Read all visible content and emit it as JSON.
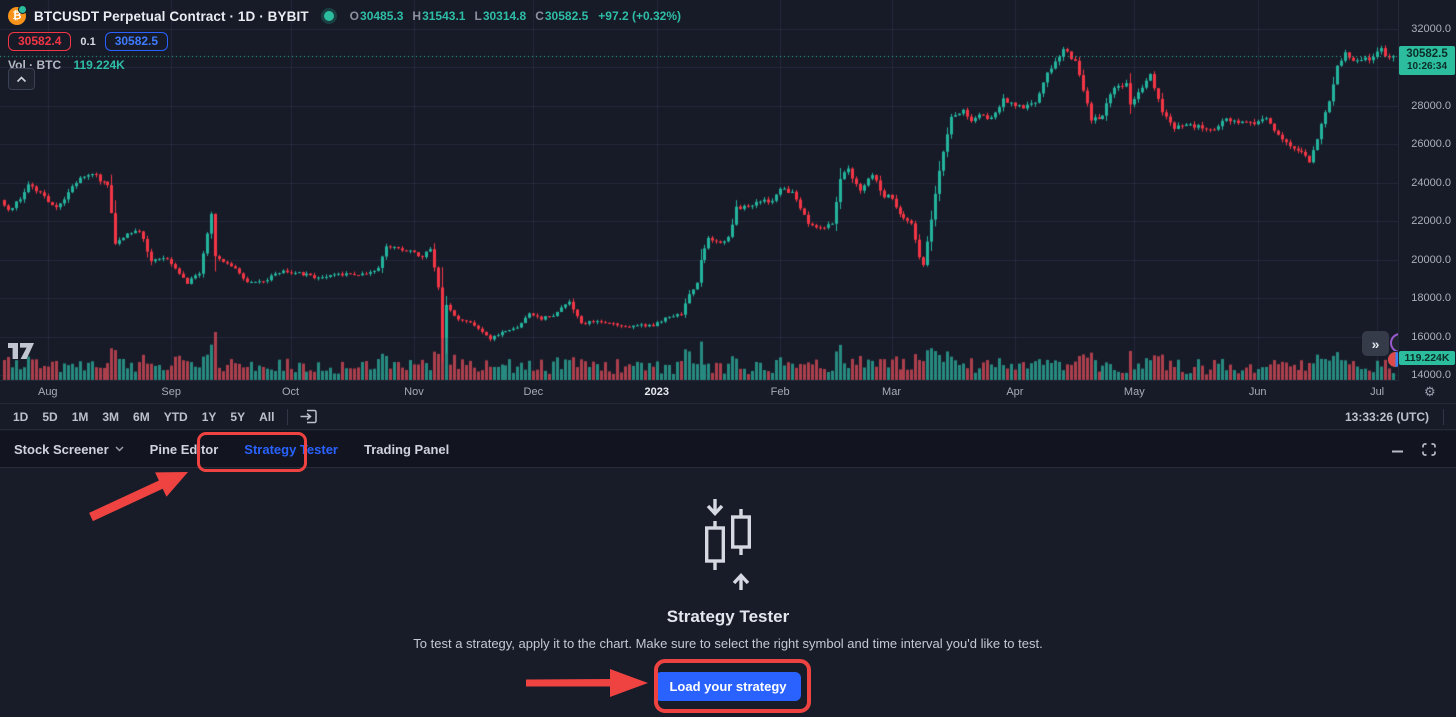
{
  "header": {
    "symbol_title": "BTCUSDT Perpetual Contract · 1D · BYBIT",
    "ohlc": {
      "o_key": "O",
      "o": "30485.3",
      "h_key": "H",
      "h": "31543.1",
      "l_key": "L",
      "l": "30314.8",
      "c_key": "C",
      "c": "30582.5",
      "change": "+97.2 (+0.32%)"
    },
    "bid": "30582.4",
    "spread": "0.1",
    "ask": "30582.5",
    "vol_key": "Vol · BTC",
    "vol_value": "119.224K"
  },
  "price_axis": {
    "current_price": "30582.5",
    "countdown": "10:26:34",
    "volume_label": "119.224K"
  },
  "toolbar": {
    "ranges": [
      "1D",
      "5D",
      "1M",
      "3M",
      "6M",
      "YTD",
      "1Y",
      "5Y",
      "All"
    ],
    "clock": "13:33:26 (UTC)"
  },
  "tabs": {
    "items": [
      "Stock Screener",
      "Pine Editor",
      "Strategy Tester",
      "Trading Panel"
    ],
    "active": "Strategy Tester"
  },
  "strategy_tester": {
    "title": "Strategy Tester",
    "description": "To test a strategy, apply it to the chart. Make sure to select the right symbol and time interval you'd like to test.",
    "button_label": "Load your strategy"
  },
  "icons": {
    "symbol_logo": "bitcoin-circle",
    "market_status": "connected-dot",
    "collapse_pane": "chevron-up",
    "goto_date": "calendar-arrow",
    "price_scale_settings": "gear",
    "scroll_to_recent": "double-chevron-right",
    "screener_caret": "chevron-down",
    "minimize": "minus",
    "restore": "corner-brackets",
    "watermark": "tradingview-logo"
  },
  "colors": {
    "accent_blue": "#2962ff",
    "up_green": "#25b39d",
    "down_red": "#f23645",
    "vol_up": "rgba(42,157,143,0.85)",
    "vol_down": "rgba(198,69,82,0.85)",
    "label_green": "#2bbd9e",
    "annotation_red": "#ee4340"
  },
  "chart_data": {
    "type": "candlestick",
    "title": "BTCUSDT Perpetual Contract, 1D, BYBIT",
    "legend": "Vol · BTC 119.224K",
    "y_axis": {
      "min": 14000,
      "max": 32000,
      "tick_step": 2000,
      "ticks": [
        32000,
        30000,
        28000,
        26000,
        24000,
        22000,
        20000,
        18000,
        16000,
        14000
      ]
    },
    "x_axis": {
      "months": [
        {
          "label": "Aug",
          "day": 11
        },
        {
          "label": "Sep",
          "day": 42
        },
        {
          "label": "Oct",
          "day": 72
        },
        {
          "label": "Nov",
          "day": 103
        },
        {
          "label": "Dec",
          "day": 133
        },
        {
          "label": "2023",
          "day": 164,
          "bold": true
        },
        {
          "label": "Feb",
          "day": 195
        },
        {
          "label": "Mar",
          "day": 223
        },
        {
          "label": "Apr",
          "day": 254
        },
        {
          "label": "May",
          "day": 284
        },
        {
          "label": "Jun",
          "day": 315
        },
        {
          "label": "Jul",
          "day": 345
        }
      ]
    },
    "days": 349,
    "current_price": 30582.5,
    "anchor_points": [
      [
        0,
        23100
      ],
      [
        2,
        22500
      ],
      [
        5,
        23200
      ],
      [
        7,
        23850
      ],
      [
        9,
        23650
      ],
      [
        11,
        23300
      ],
      [
        14,
        22650
      ],
      [
        18,
        23800
      ],
      [
        21,
        24400
      ],
      [
        24,
        24450
      ],
      [
        25,
        24100
      ],
      [
        27,
        23850
      ],
      [
        29,
        20850
      ],
      [
        32,
        21350
      ],
      [
        35,
        21550
      ],
      [
        38,
        19950
      ],
      [
        41,
        20050
      ],
      [
        42,
        20100
      ],
      [
        47,
        18800
      ],
      [
        50,
        19300
      ],
      [
        52,
        21400
      ],
      [
        53,
        22300
      ],
      [
        54,
        20200
      ],
      [
        59,
        19550
      ],
      [
        62,
        18850
      ],
      [
        66,
        18900
      ],
      [
        68,
        19100
      ],
      [
        71,
        19400
      ],
      [
        75,
        19300
      ],
      [
        79,
        19100
      ],
      [
        83,
        19150
      ],
      [
        87,
        19250
      ],
      [
        91,
        19200
      ],
      [
        95,
        19550
      ],
      [
        97,
        20750
      ],
      [
        100,
        20600
      ],
      [
        103,
        20450
      ],
      [
        106,
        20150
      ],
      [
        108,
        20600
      ],
      [
        110,
        18500
      ],
      [
        111,
        15950
      ],
      [
        112,
        17600
      ],
      [
        115,
        16900
      ],
      [
        118,
        16700
      ],
      [
        121,
        16200
      ],
      [
        123,
        15850
      ],
      [
        126,
        16250
      ],
      [
        130,
        16500
      ],
      [
        133,
        17150
      ],
      [
        136,
        16950
      ],
      [
        139,
        17100
      ],
      [
        143,
        17800
      ],
      [
        146,
        16650
      ],
      [
        150,
        16850
      ],
      [
        155,
        16600
      ],
      [
        158,
        16550
      ],
      [
        161,
        16600
      ],
      [
        164,
        16550
      ],
      [
        167,
        16950
      ],
      [
        171,
        17200
      ],
      [
        173,
        18150
      ],
      [
        175,
        18850
      ],
      [
        176,
        19950
      ],
      [
        178,
        21100
      ],
      [
        181,
        20900
      ],
      [
        183,
        21100
      ],
      [
        185,
        22700
      ],
      [
        188,
        22720
      ],
      [
        191,
        23050
      ],
      [
        194,
        23000
      ],
      [
        196,
        23750
      ],
      [
        199,
        23450
      ],
      [
        203,
        21850
      ],
      [
        206,
        21650
      ],
      [
        209,
        21850
      ],
      [
        211,
        24250
      ],
      [
        213,
        24650
      ],
      [
        216,
        23550
      ],
      [
        219,
        24450
      ],
      [
        222,
        23200
      ],
      [
        223,
        23450
      ],
      [
        226,
        22400
      ],
      [
        229,
        21800
      ],
      [
        231,
        20200
      ],
      [
        232,
        19700
      ],
      [
        234,
        22050
      ],
      [
        236,
        24650
      ],
      [
        239,
        27400
      ],
      [
        242,
        27800
      ],
      [
        244,
        27300
      ],
      [
        246,
        27500
      ],
      [
        249,
        27300
      ],
      [
        252,
        28350
      ],
      [
        254,
        28200
      ],
      [
        257,
        27900
      ],
      [
        260,
        28200
      ],
      [
        263,
        29650
      ],
      [
        265,
        30200
      ],
      [
        267,
        30950
      ],
      [
        270,
        30350
      ],
      [
        274,
        27250
      ],
      [
        277,
        27500
      ],
      [
        279,
        28700
      ],
      [
        283,
        29250
      ],
      [
        284,
        28100
      ],
      [
        287,
        28900
      ],
      [
        289,
        29550
      ],
      [
        292,
        27650
      ],
      [
        295,
        26850
      ],
      [
        299,
        27000
      ],
      [
        302,
        26900
      ],
      [
        305,
        26800
      ],
      [
        308,
        27400
      ],
      [
        311,
        27100
      ],
      [
        313,
        27250
      ],
      [
        315,
        27100
      ],
      [
        318,
        27250
      ],
      [
        321,
        26500
      ],
      [
        324,
        25900
      ],
      [
        327,
        25700
      ],
      [
        329,
        25050
      ],
      [
        331,
        26350
      ],
      [
        334,
        28300
      ],
      [
        336,
        30150
      ],
      [
        338,
        30700
      ],
      [
        340,
        30450
      ],
      [
        342,
        30350
      ],
      [
        344,
        30450
      ],
      [
        345,
        30620
      ],
      [
        347,
        31100
      ],
      [
        348,
        30500
      ],
      [
        349,
        30582.5
      ]
    ]
  }
}
